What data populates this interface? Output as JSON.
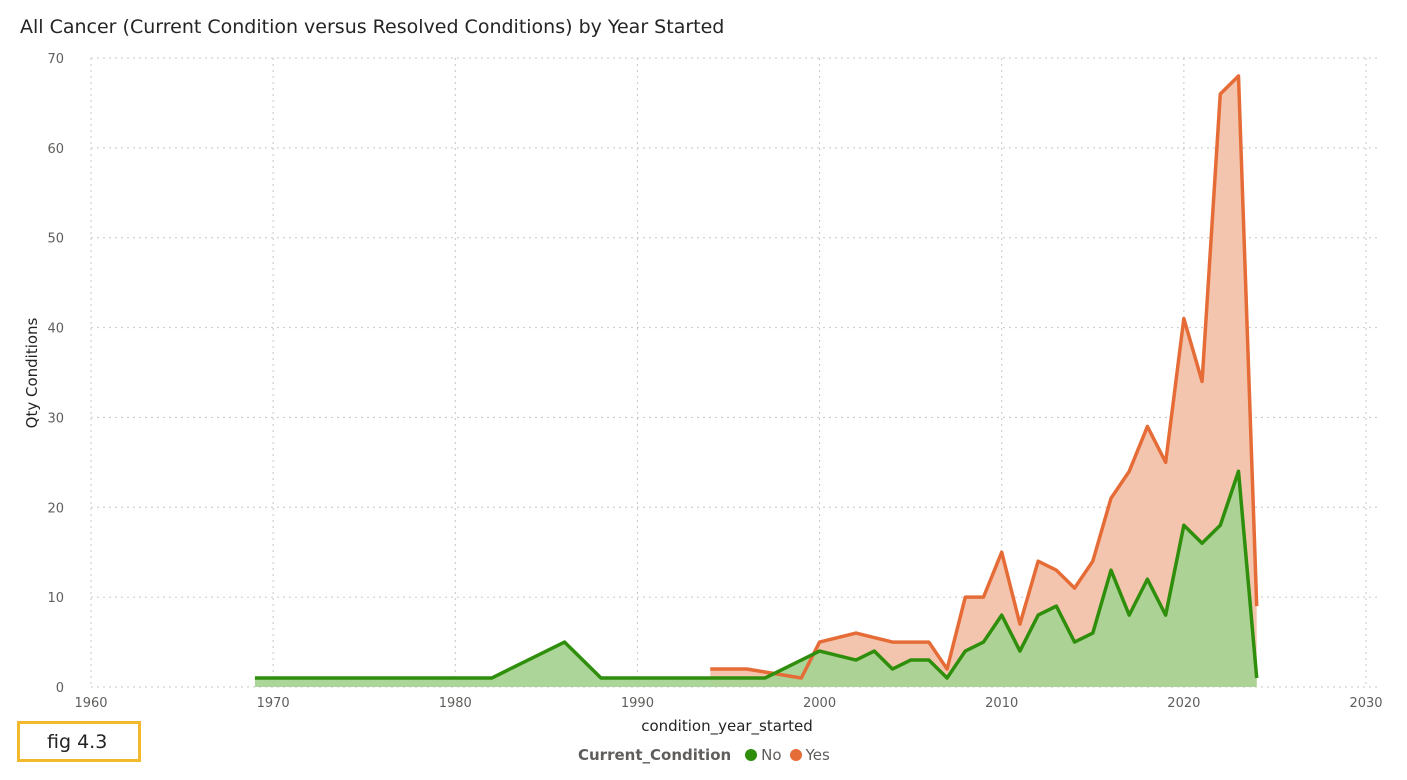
{
  "chart_data": {
    "type": "area",
    "title": "All Cancer (Current Condition versus Resolved Conditions) by Year Started",
    "xlabel": "condition_year_started",
    "ylabel": "Qty Conditions",
    "xlim": [
      1960,
      2030
    ],
    "ylim": [
      0,
      70
    ],
    "x_ticks": [
      "1960",
      "1970",
      "1980",
      "1990",
      "2000",
      "2010",
      "2020",
      "2030"
    ],
    "y_ticks": [
      "0",
      "10",
      "20",
      "30",
      "40",
      "50",
      "60",
      "70"
    ],
    "grid": true,
    "legend_title": "Current_Condition",
    "legend_position": "bottom-center",
    "series": [
      {
        "name": "No",
        "color": "#2f8e0b",
        "fill": "#a8d494",
        "points": [
          [
            1969,
            1
          ],
          [
            1982,
            1
          ],
          [
            1986,
            5
          ],
          [
            1988,
            1
          ],
          [
            1997,
            1
          ],
          [
            2000,
            4
          ],
          [
            2002,
            3
          ],
          [
            2003,
            4
          ],
          [
            2004,
            2
          ],
          [
            2005,
            3
          ],
          [
            2006,
            3
          ],
          [
            2007,
            1
          ],
          [
            2008,
            4
          ],
          [
            2009,
            5
          ],
          [
            2010,
            8
          ],
          [
            2011,
            4
          ],
          [
            2012,
            8
          ],
          [
            2013,
            9
          ],
          [
            2014,
            5
          ],
          [
            2015,
            6
          ],
          [
            2016,
            13
          ],
          [
            2017,
            8
          ],
          [
            2018,
            12
          ],
          [
            2019,
            8
          ],
          [
            2020,
            18
          ],
          [
            2021,
            16
          ],
          [
            2022,
            18
          ],
          [
            2023,
            24
          ],
          [
            2024,
            1
          ]
        ]
      },
      {
        "name": "Yes",
        "color": "#e66c37",
        "fill": "#f3c2aa",
        "points": [
          [
            1994,
            2
          ],
          [
            1996,
            2
          ],
          [
            1999,
            1
          ],
          [
            2000,
            5
          ],
          [
            2002,
            6
          ],
          [
            2004,
            5
          ],
          [
            2006,
            5
          ],
          [
            2007,
            2
          ],
          [
            2008,
            10
          ],
          [
            2009,
            10
          ],
          [
            2010,
            15
          ],
          [
            2011,
            7
          ],
          [
            2012,
            14
          ],
          [
            2013,
            13
          ],
          [
            2014,
            11
          ],
          [
            2015,
            14
          ],
          [
            2016,
            21
          ],
          [
            2017,
            24
          ],
          [
            2018,
            29
          ],
          [
            2019,
            25
          ],
          [
            2020,
            41
          ],
          [
            2021,
            34
          ],
          [
            2022,
            66
          ],
          [
            2023,
            68
          ],
          [
            2024,
            9
          ]
        ]
      }
    ]
  },
  "annotation": {
    "label": "fig 4.3",
    "border_color": "#f2b82e"
  }
}
